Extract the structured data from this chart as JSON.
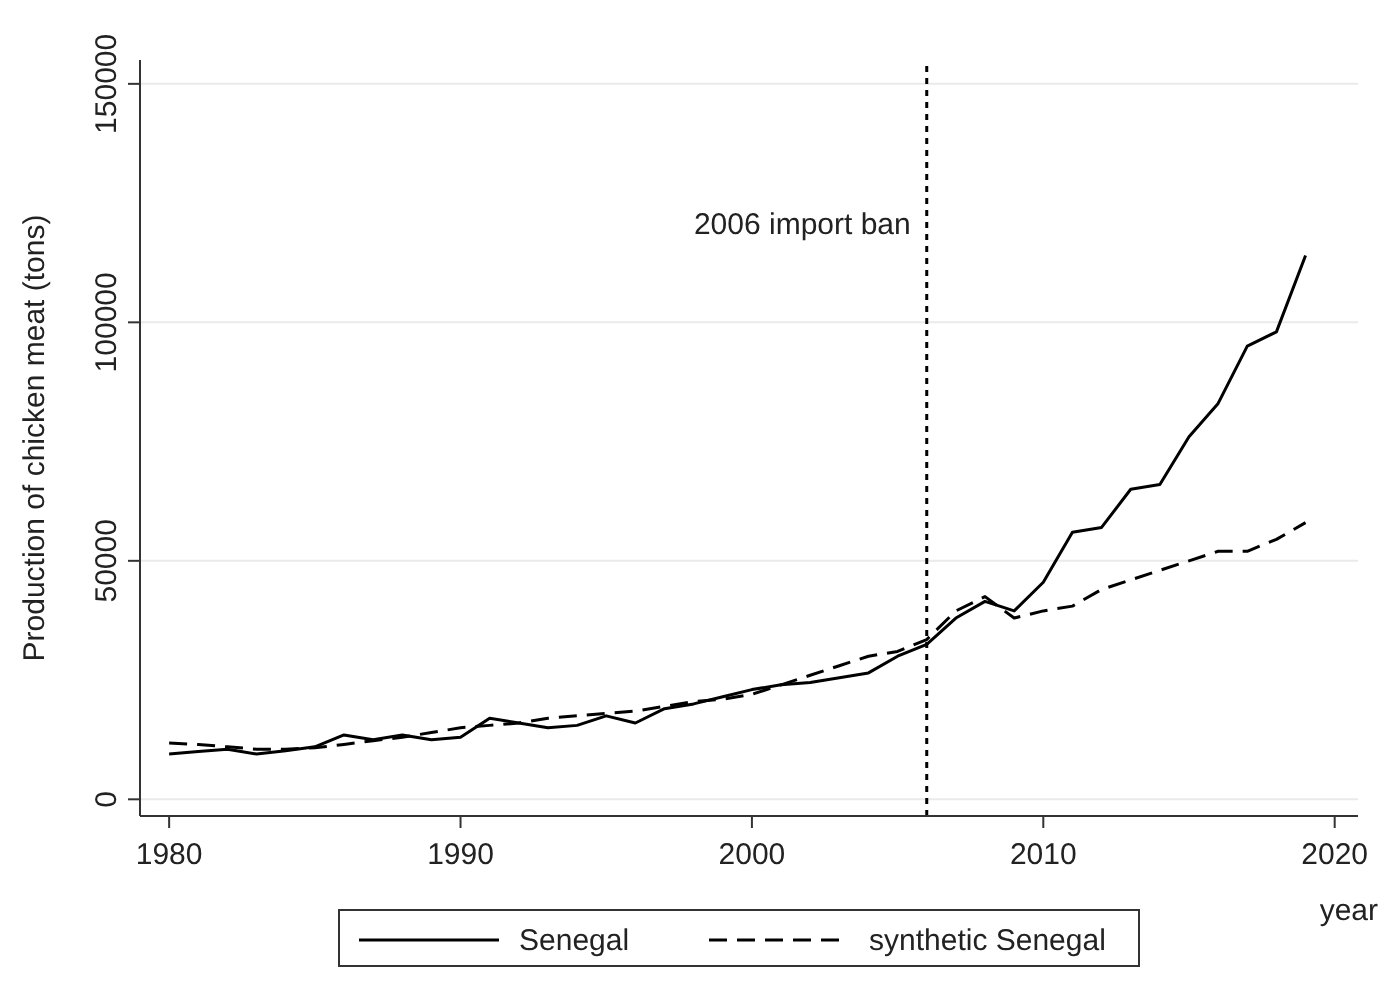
{
  "chart_data": {
    "type": "line",
    "xlabel": "year",
    "ylabel": "Production of chicken meat (tons)",
    "x": [
      1980,
      1981,
      1982,
      1983,
      1984,
      1985,
      1986,
      1987,
      1988,
      1989,
      1990,
      1991,
      1992,
      1993,
      1994,
      1995,
      1996,
      1997,
      1998,
      1999,
      2000,
      2001,
      2002,
      2003,
      2004,
      2005,
      2006,
      2007,
      2008,
      2009,
      2010,
      2011,
      2012,
      2013,
      2014,
      2015,
      2016,
      2017,
      2018,
      2019
    ],
    "series": [
      {
        "name": "Senegal",
        "color": "#000000",
        "line_style": "solid",
        "values": [
          9500,
          10000,
          10500,
          9500,
          10200,
          11000,
          13500,
          12500,
          13500,
          12500,
          13000,
          17000,
          16000,
          15000,
          15500,
          17500,
          16000,
          19000,
          20000,
          21500,
          23000,
          24000,
          24500,
          25500,
          26500,
          30000,
          32500,
          38000,
          41500,
          39500,
          45500,
          56000,
          57000,
          65000,
          66000,
          76000,
          83000,
          95000,
          98000,
          114000
        ]
      },
      {
        "name": "synthetic Senegal",
        "color": "#000000",
        "line_style": "dashed",
        "values": [
          11800,
          11500,
          11000,
          10500,
          10500,
          10800,
          11500,
          12300,
          13000,
          14000,
          15000,
          15500,
          16000,
          17000,
          17500,
          18000,
          18500,
          19500,
          20500,
          21000,
          22000,
          24000,
          26000,
          28000,
          30000,
          31000,
          33500,
          39500,
          42500,
          38000,
          39500,
          40500,
          44000,
          46000,
          48000,
          50000,
          52000,
          52000,
          54500,
          58000
        ]
      }
    ],
    "xlim": [
      1979,
      2020.8
    ],
    "xticks": [
      1980,
      1990,
      2000,
      2010,
      2020
    ],
    "ylim": [
      -3500,
      155000
    ],
    "yticks": [
      0,
      50000,
      100000,
      150000
    ],
    "grid": "y",
    "legend": "bottom",
    "marker": "none",
    "ref_lines": [
      {
        "axis": "x",
        "value": 2006,
        "label": "2006 import ban",
        "line_style": "dotted",
        "color": "#000000"
      }
    ]
  }
}
